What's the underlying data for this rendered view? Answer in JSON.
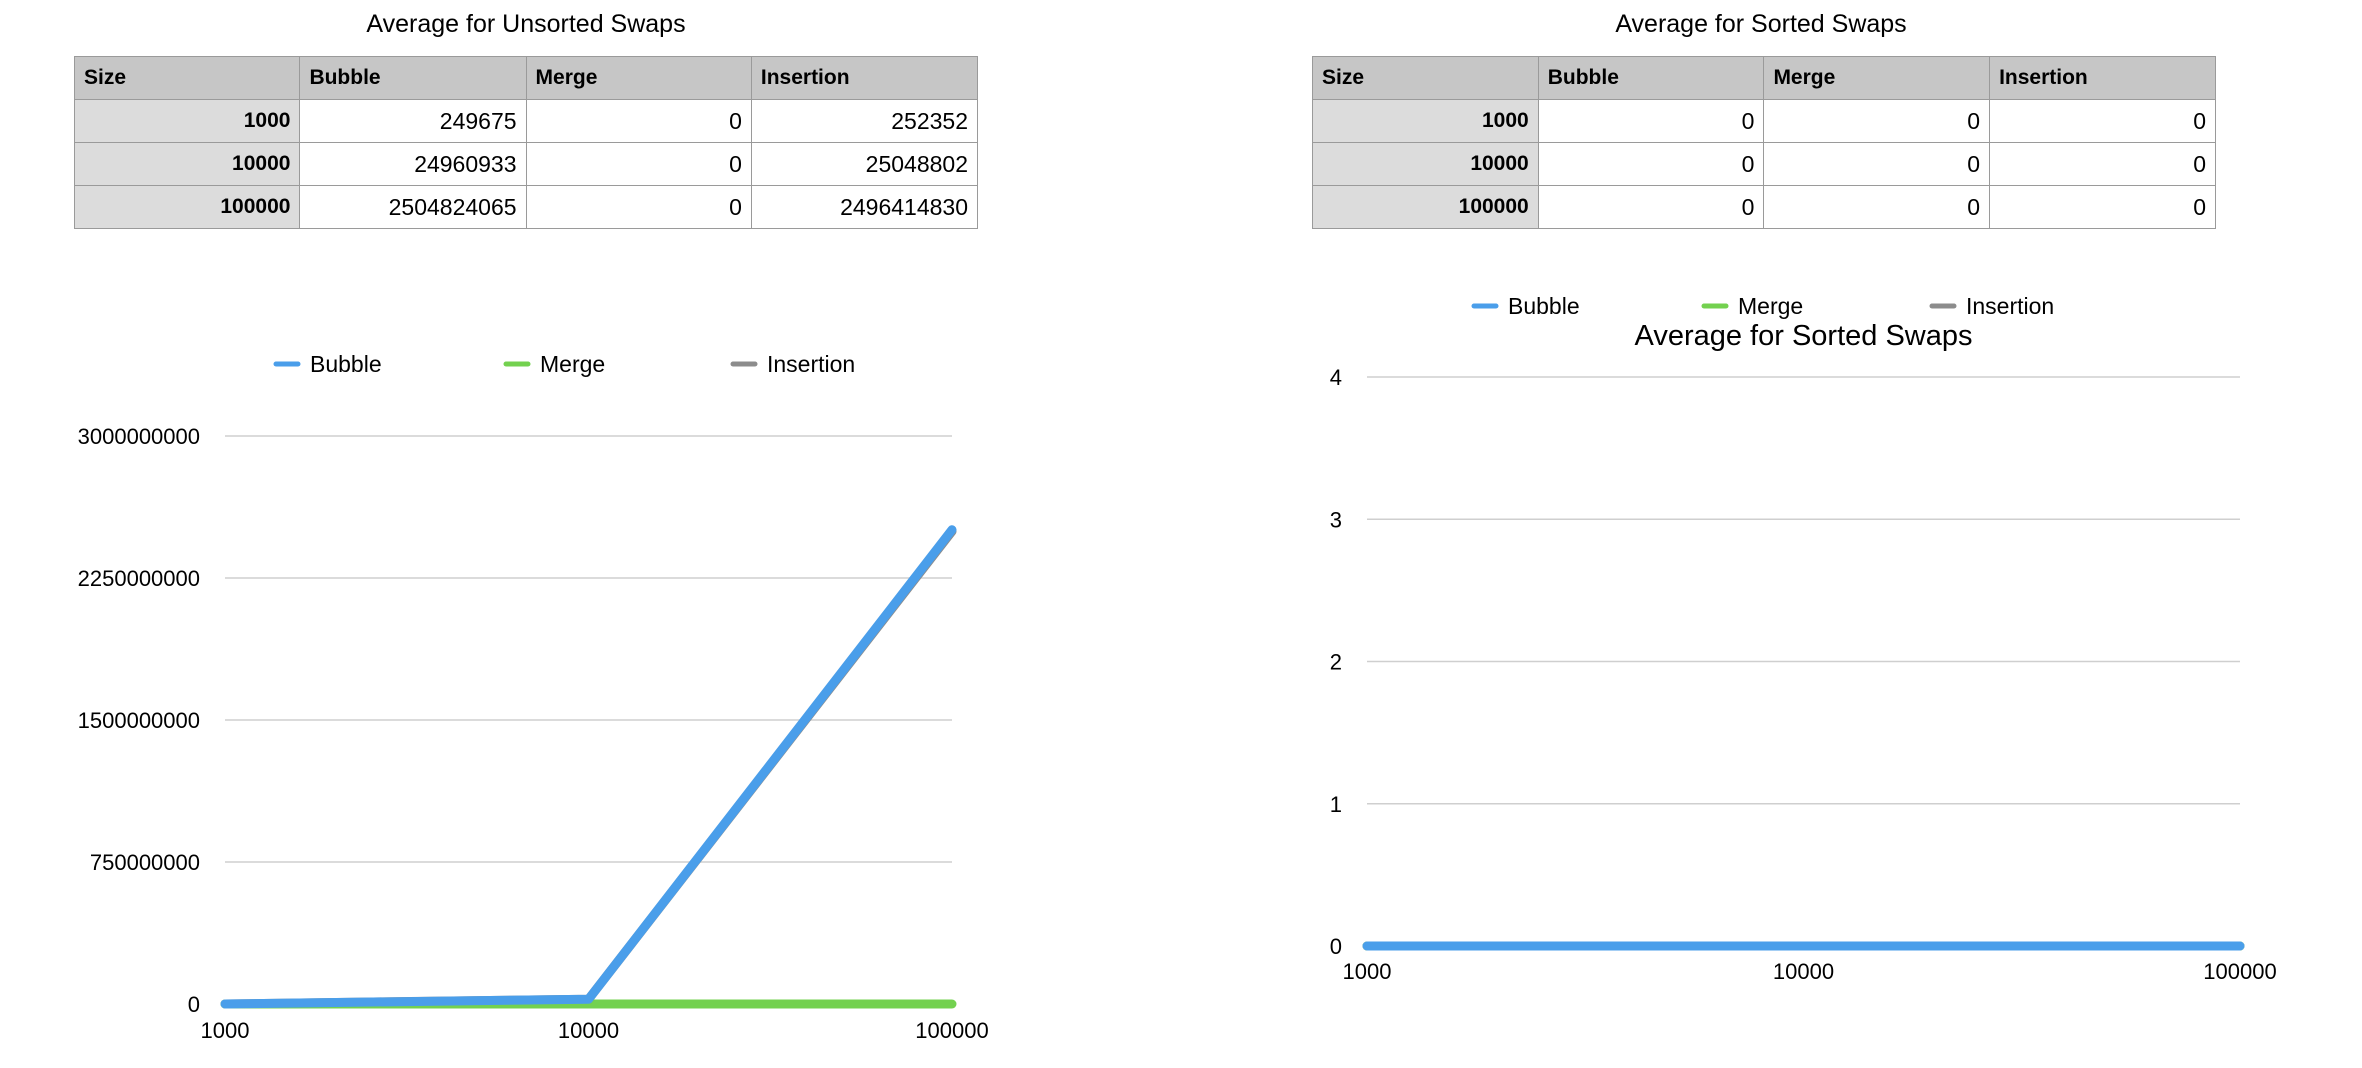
{
  "tables": [
    {
      "title": "Average for Unsorted Swaps",
      "headers": [
        "Size",
        "Bubble",
        "Merge",
        "Insertion"
      ],
      "rows": [
        [
          "1000",
          "249675",
          "0",
          "252352"
        ],
        [
          "10000",
          "24960933",
          "0",
          "25048802"
        ],
        [
          "100000",
          "2504824065",
          "0",
          "2496414830"
        ]
      ]
    },
    {
      "title": "Average for Sorted Swaps",
      "headers": [
        "Size",
        "Bubble",
        "Merge",
        "Insertion"
      ],
      "rows": [
        [
          "1000",
          "0",
          "0",
          "0"
        ],
        [
          "10000",
          "0",
          "0",
          "0"
        ],
        [
          "100000",
          "0",
          "0",
          "0"
        ]
      ]
    }
  ],
  "chart_data": [
    {
      "type": "line",
      "title": "",
      "categories": [
        "1000",
        "10000",
        "100000"
      ],
      "series": [
        {
          "name": "Bubble",
          "color": "#4a9eea",
          "values": [
            249675,
            24960933,
            2504824065
          ]
        },
        {
          "name": "Merge",
          "color": "#73d14f",
          "values": [
            0,
            0,
            0
          ]
        },
        {
          "name": "Insertion",
          "color": "#8c8c8c",
          "values": [
            252352,
            25048802,
            2496414830
          ]
        }
      ],
      "yticks": [
        "0",
        "750000000",
        "1500000000",
        "2250000000",
        "3000000000"
      ],
      "ylim": [
        0,
        3000000000
      ],
      "grid": true,
      "legend": "top"
    },
    {
      "type": "line",
      "title": "Average for Sorted Swaps",
      "categories": [
        "1000",
        "10000",
        "100000"
      ],
      "series": [
        {
          "name": "Bubble",
          "color": "#4a9eea",
          "values": [
            0,
            0,
            0
          ]
        },
        {
          "name": "Merge",
          "color": "#73d14f",
          "values": [
            0,
            0,
            0
          ]
        },
        {
          "name": "Insertion",
          "color": "#8c8c8c",
          "values": [
            0,
            0,
            0
          ]
        }
      ],
      "yticks": [
        "0",
        "1",
        "2",
        "3",
        "4"
      ],
      "ylim": [
        0,
        4
      ],
      "grid": true,
      "legend": "top"
    }
  ]
}
